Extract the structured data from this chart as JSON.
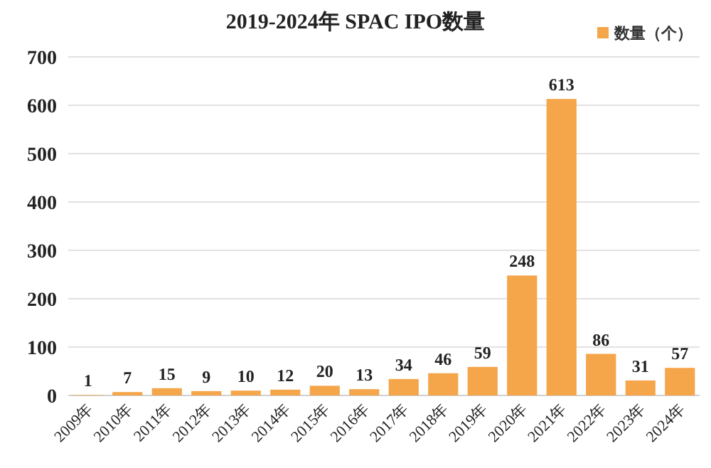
{
  "chart_data": {
    "type": "bar",
    "title": "2019-2024年 SPAC IPO数量",
    "categories": [
      "2009年",
      "2010年",
      "2011年",
      "2012年",
      "2013年",
      "2014年",
      "2015年",
      "2016年",
      "2017年",
      "2018年",
      "2019年",
      "2020年",
      "2021年",
      "2022年",
      "2023年",
      "2024年"
    ],
    "series": [
      {
        "name": "数量（个）",
        "color": "#f5a54a",
        "values": [
          1,
          7,
          15,
          9,
          10,
          12,
          20,
          13,
          34,
          46,
          59,
          248,
          613,
          86,
          31,
          57
        ]
      }
    ],
    "ylim": [
      0,
      700
    ],
    "yticks": [
      0,
      100,
      200,
      300,
      400,
      500,
      600,
      700
    ],
    "grid": "y",
    "legend": "top right",
    "data_labels": true
  }
}
